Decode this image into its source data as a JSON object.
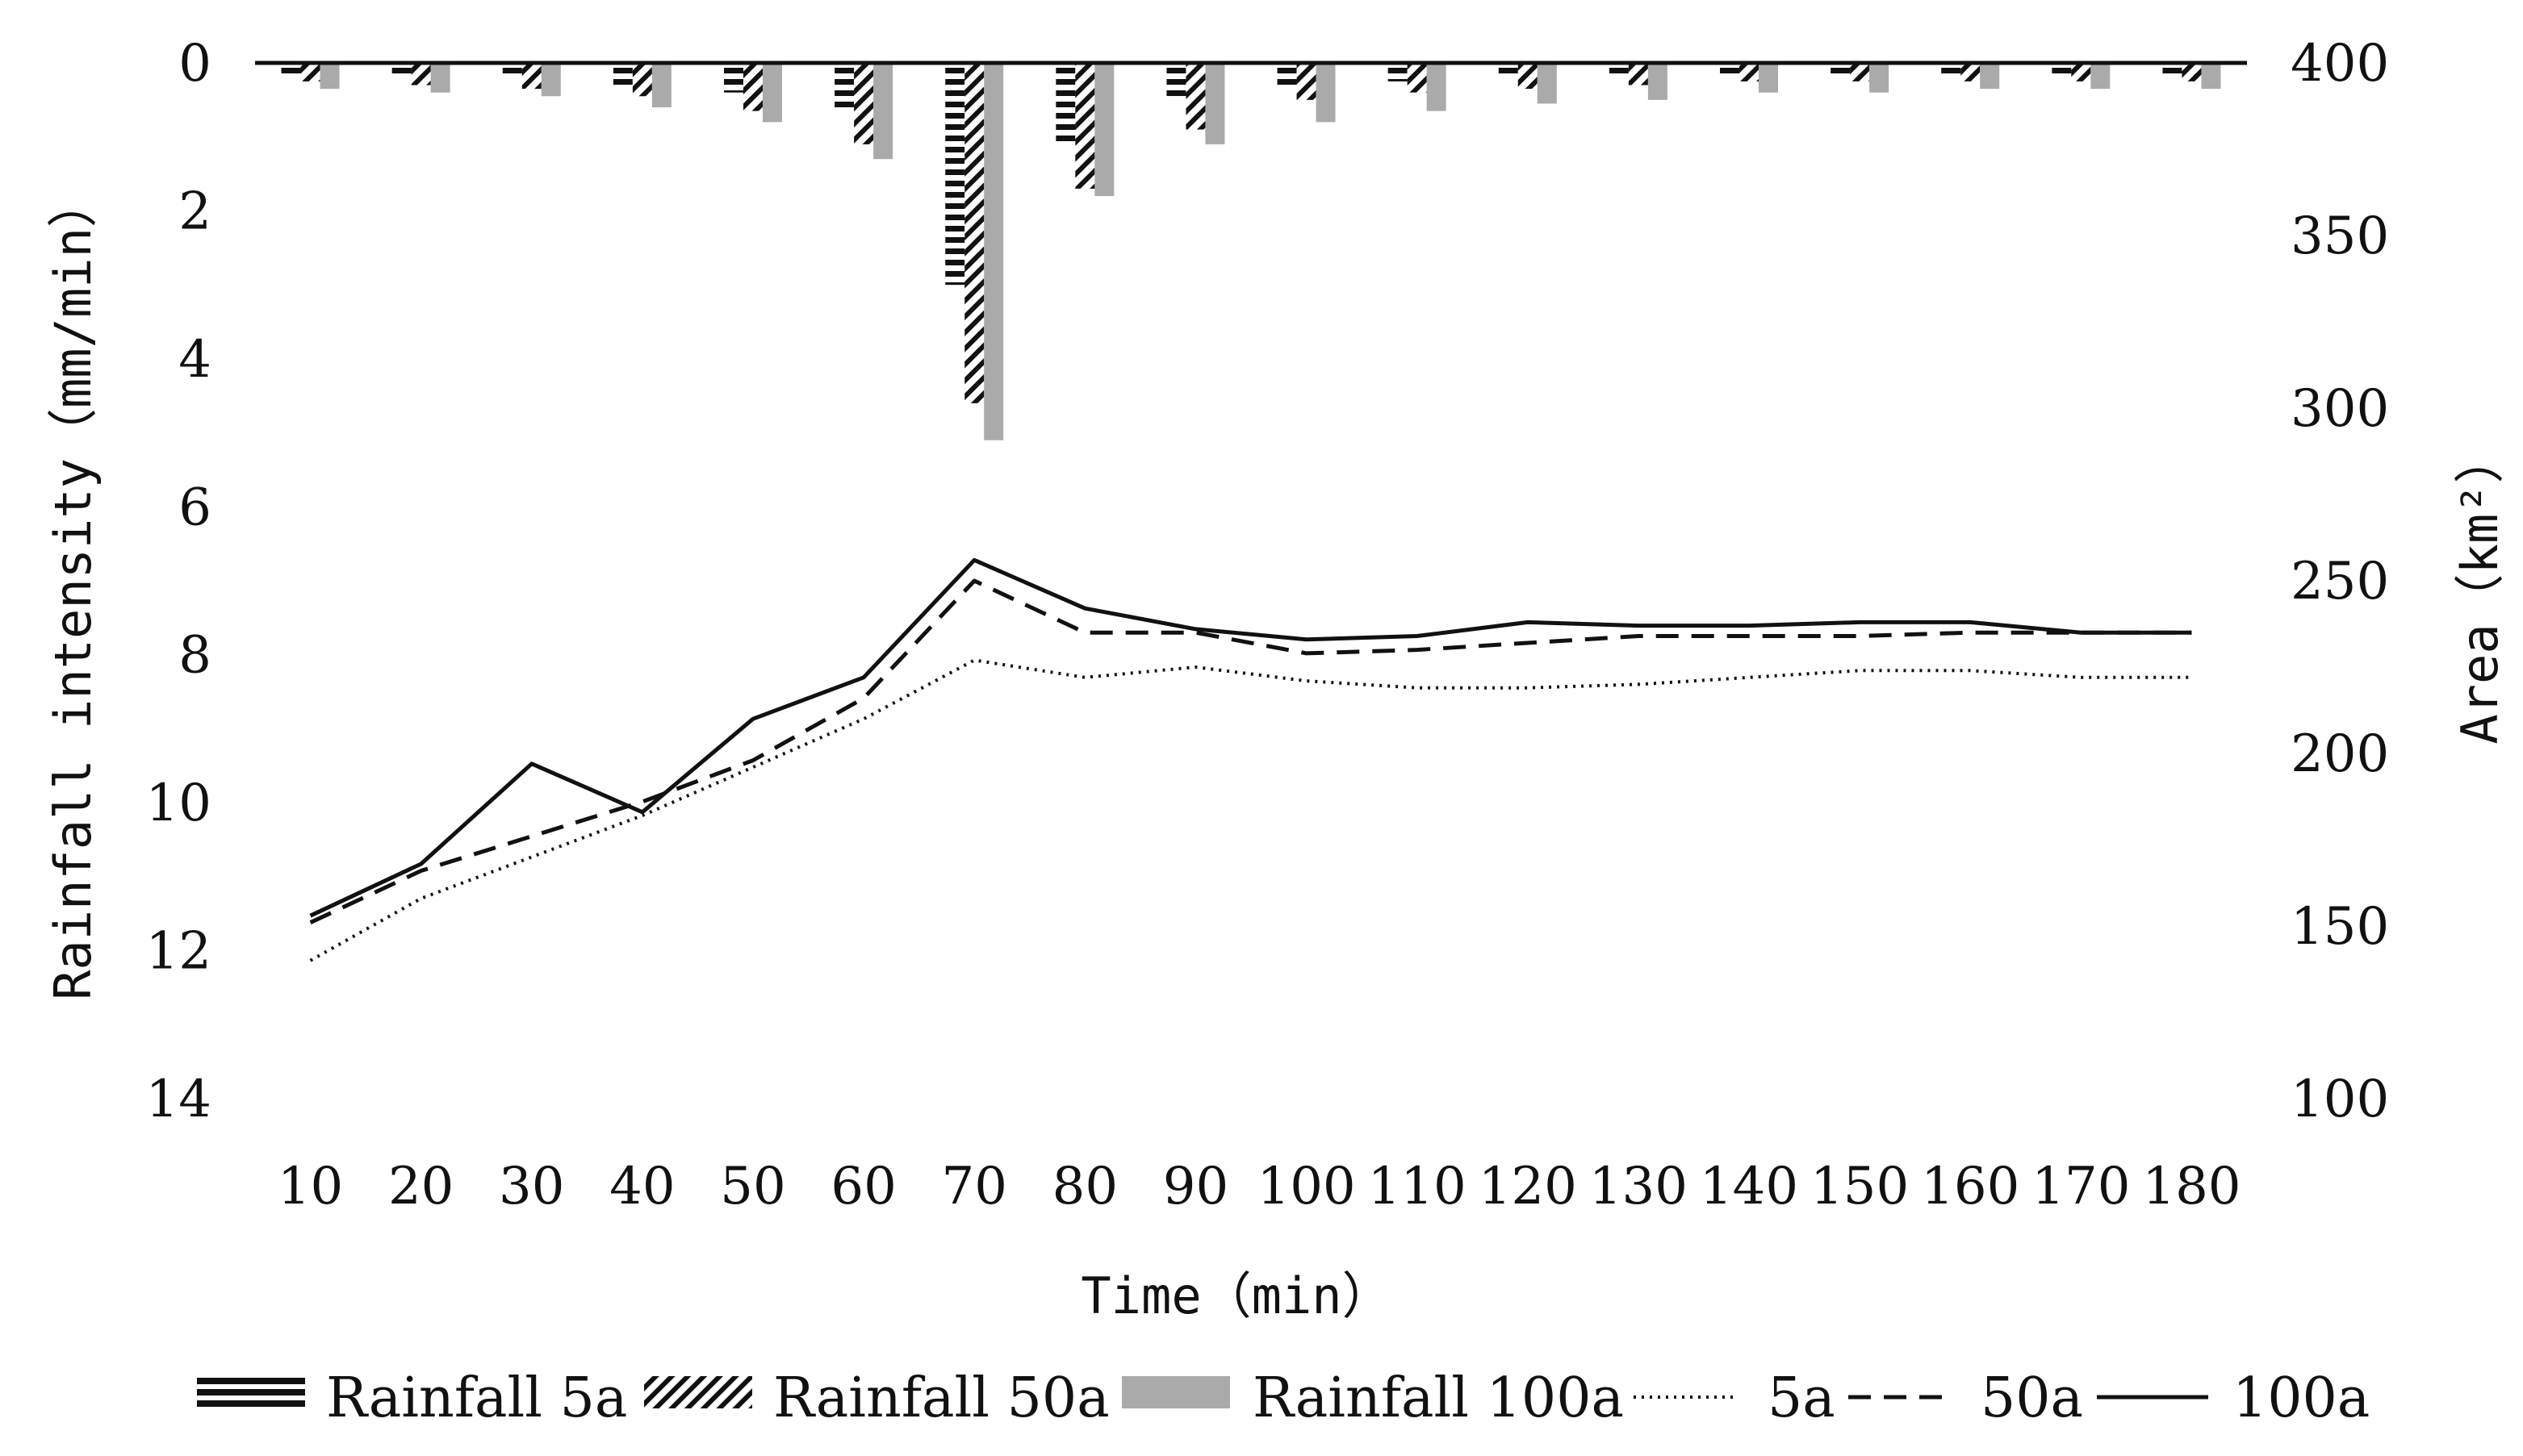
{
  "chart_data": {
    "type": "bar+line",
    "categories": [
      "10",
      "20",
      "30",
      "40",
      "50",
      "60",
      "70",
      "80",
      "90",
      "100",
      "110",
      "120",
      "130",
      "140",
      "150",
      "160",
      "170",
      "180"
    ],
    "xlabel": "Time（min）",
    "ylabel_left": "Rainfall intensity（mm/min）",
    "ylabel_right": "Area（km²）",
    "ylim_left": [
      0,
      14
    ],
    "ylim_left_inverted": true,
    "yticks_left": [
      "0",
      "2",
      "4",
      "6",
      "8",
      "10",
      "12",
      "14"
    ],
    "ylim_right": [
      100,
      400
    ],
    "yticks_right": [
      "100",
      "150",
      "200",
      "250",
      "300",
      "350",
      "400"
    ],
    "grid": false,
    "bar_series": [
      {
        "name": "Rainfall 5a",
        "pattern": "horizontal-lines",
        "values": [
          0.15,
          0.2,
          0.2,
          0.3,
          0.4,
          0.6,
          3.0,
          1.1,
          0.5,
          0.3,
          0.25,
          0.2,
          0.2,
          0.15,
          0.15,
          0.15,
          0.15,
          0.15
        ]
      },
      {
        "name": "Rainfall 50a",
        "pattern": "diagonal-hatch",
        "values": [
          0.25,
          0.3,
          0.35,
          0.45,
          0.65,
          1.1,
          4.6,
          1.7,
          0.9,
          0.5,
          0.4,
          0.35,
          0.3,
          0.25,
          0.25,
          0.25,
          0.25,
          0.25
        ]
      },
      {
        "name": "Rainfall 100a",
        "pattern": "solid-gray",
        "values": [
          0.35,
          0.4,
          0.45,
          0.6,
          0.8,
          1.3,
          5.1,
          1.8,
          1.1,
          0.8,
          0.65,
          0.55,
          0.5,
          0.4,
          0.4,
          0.35,
          0.35,
          0.35
        ]
      }
    ],
    "line_series": [
      {
        "name": "5a",
        "style": "dotted",
        "values": [
          140,
          158,
          170,
          182,
          196,
          210,
          227,
          222,
          225,
          221,
          219,
          219,
          220,
          222,
          224,
          224,
          222,
          222
        ]
      },
      {
        "name": "50a",
        "style": "dashed",
        "values": [
          151,
          166,
          176,
          186,
          198,
          216,
          250,
          235,
          235,
          229,
          230,
          232,
          234,
          234,
          234,
          235,
          235,
          235
        ]
      },
      {
        "name": "100a",
        "style": "solid",
        "values": [
          153,
          168,
          197,
          183,
          210,
          222,
          256,
          242,
          236,
          233,
          234,
          238,
          237,
          237,
          238,
          238,
          235,
          235
        ]
      }
    ],
    "legend": {
      "position": "bottom",
      "entries": [
        "Rainfall 5a",
        "Rainfall 50a",
        "Rainfall 100a",
        "5a",
        "50a",
        "100a"
      ]
    }
  }
}
